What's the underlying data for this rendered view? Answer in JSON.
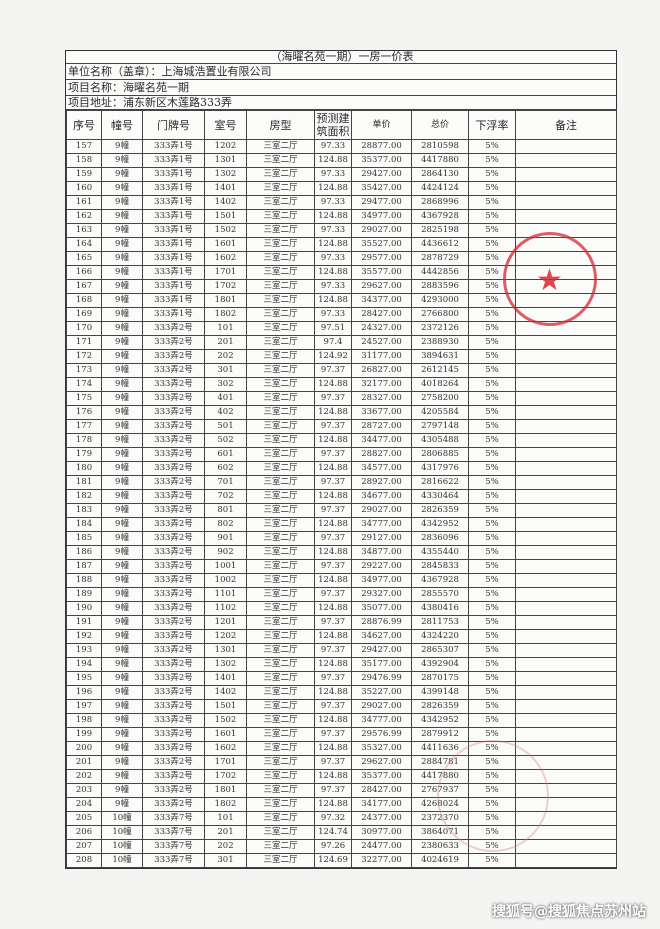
{
  "document": {
    "title": "（海曜名苑一期）一房一价表",
    "company_line": "单位名称（盖章）：上海城浩置业有限公司",
    "project_name_line": "项目名称：海曜名苑一期",
    "project_address_line": "项目地址：浦东新区木莲路333弄"
  },
  "table": {
    "headers": [
      "序号",
      "幢号",
      "门牌号",
      "室号",
      "房型",
      "预测建筑面积",
      "单价",
      "总价",
      "下浮率",
      "备注"
    ],
    "rows": [
      [
        "157",
        "9幢",
        "333弄1号",
        "1202",
        "三室二厅",
        "97.33",
        "28877.00",
        "2810598",
        "5%",
        ""
      ],
      [
        "158",
        "9幢",
        "333弄1号",
        "1301",
        "三室二厅",
        "124.88",
        "35377.00",
        "4417880",
        "5%",
        ""
      ],
      [
        "159",
        "9幢",
        "333弄1号",
        "1302",
        "三室二厅",
        "97.33",
        "29427.00",
        "2864130",
        "5%",
        ""
      ],
      [
        "160",
        "9幢",
        "333弄1号",
        "1401",
        "三室二厅",
        "124.88",
        "35427.00",
        "4424124",
        "5%",
        ""
      ],
      [
        "161",
        "9幢",
        "333弄1号",
        "1402",
        "三室二厅",
        "97.33",
        "29477.00",
        "2868996",
        "5%",
        ""
      ],
      [
        "162",
        "9幢",
        "333弄1号",
        "1501",
        "三室二厅",
        "124.88",
        "34977.00",
        "4367928",
        "5%",
        ""
      ],
      [
        "163",
        "9幢",
        "333弄1号",
        "1502",
        "三室二厅",
        "97.33",
        "29027.00",
        "2825198",
        "5%",
        ""
      ],
      [
        "164",
        "9幢",
        "333弄1号",
        "1601",
        "三室二厅",
        "124.88",
        "35527.00",
        "4436612",
        "5%",
        ""
      ],
      [
        "165",
        "9幢",
        "333弄1号",
        "1602",
        "三室二厅",
        "97.33",
        "29577.00",
        "2878729",
        "5%",
        ""
      ],
      [
        "166",
        "9幢",
        "333弄1号",
        "1701",
        "三室二厅",
        "124.88",
        "35577.00",
        "4442856",
        "5%",
        ""
      ],
      [
        "167",
        "9幢",
        "333弄1号",
        "1702",
        "三室二厅",
        "97.33",
        "29627.00",
        "2883596",
        "5%",
        ""
      ],
      [
        "168",
        "9幢",
        "333弄1号",
        "1801",
        "三室二厅",
        "124.88",
        "34377.00",
        "4293000",
        "5%",
        ""
      ],
      [
        "169",
        "9幢",
        "333弄1号",
        "1802",
        "三室二厅",
        "97.33",
        "28427.00",
        "2766800",
        "5%",
        ""
      ],
      [
        "170",
        "9幢",
        "333弄2号",
        "101",
        "三室二厅",
        "97.51",
        "24327.00",
        "2372126",
        "5%",
        ""
      ],
      [
        "171",
        "9幢",
        "333弄2号",
        "201",
        "三室二厅",
        "97.4",
        "24527.00",
        "2388930",
        "5%",
        ""
      ],
      [
        "172",
        "9幢",
        "333弄2号",
        "202",
        "三室二厅",
        "124.92",
        "31177.00",
        "3894631",
        "5%",
        ""
      ],
      [
        "173",
        "9幢",
        "333弄2号",
        "301",
        "三室二厅",
        "97.37",
        "26827.00",
        "2612145",
        "5%",
        ""
      ],
      [
        "174",
        "9幢",
        "333弄2号",
        "302",
        "三室二厅",
        "124.88",
        "32177.00",
        "4018264",
        "5%",
        ""
      ],
      [
        "175",
        "9幢",
        "333弄2号",
        "401",
        "三室二厅",
        "97.37",
        "28327.00",
        "2758200",
        "5%",
        ""
      ],
      [
        "176",
        "9幢",
        "333弄2号",
        "402",
        "三室二厅",
        "124.88",
        "33677.00",
        "4205584",
        "5%",
        ""
      ],
      [
        "177",
        "9幢",
        "333弄2号",
        "501",
        "三室二厅",
        "97.37",
        "28727.00",
        "2797148",
        "5%",
        ""
      ],
      [
        "178",
        "9幢",
        "333弄2号",
        "502",
        "三室二厅",
        "124.88",
        "34477.00",
        "4305488",
        "5%",
        ""
      ],
      [
        "179",
        "9幢",
        "333弄2号",
        "601",
        "三室二厅",
        "97.37",
        "28827.00",
        "2806885",
        "5%",
        ""
      ],
      [
        "180",
        "9幢",
        "333弄2号",
        "602",
        "三室二厅",
        "124.88",
        "34577.00",
        "4317976",
        "5%",
        ""
      ],
      [
        "181",
        "9幢",
        "333弄2号",
        "701",
        "三室二厅",
        "97.37",
        "28927.00",
        "2816622",
        "5%",
        ""
      ],
      [
        "182",
        "9幢",
        "333弄2号",
        "702",
        "三室二厅",
        "124.88",
        "34677.00",
        "4330464",
        "5%",
        ""
      ],
      [
        "183",
        "9幢",
        "333弄2号",
        "801",
        "三室二厅",
        "97.37",
        "29027.00",
        "2826359",
        "5%",
        ""
      ],
      [
        "184",
        "9幢",
        "333弄2号",
        "802",
        "三室二厅",
        "124.88",
        "34777.00",
        "4342952",
        "5%",
        ""
      ],
      [
        "185",
        "9幢",
        "333弄2号",
        "901",
        "三室二厅",
        "97.37",
        "29127.00",
        "2836096",
        "5%",
        ""
      ],
      [
        "186",
        "9幢",
        "333弄2号",
        "902",
        "三室二厅",
        "124.88",
        "34877.00",
        "4355440",
        "5%",
        ""
      ],
      [
        "187",
        "9幢",
        "333弄2号",
        "1001",
        "三室二厅",
        "97.37",
        "29227.00",
        "2845833",
        "5%",
        ""
      ],
      [
        "188",
        "9幢",
        "333弄2号",
        "1002",
        "三室二厅",
        "124.88",
        "34977.00",
        "4367928",
        "5%",
        ""
      ],
      [
        "189",
        "9幢",
        "333弄2号",
        "1101",
        "三室二厅",
        "97.37",
        "29327.00",
        "2855570",
        "5%",
        ""
      ],
      [
        "190",
        "9幢",
        "333弄2号",
        "1102",
        "三室二厅",
        "124.88",
        "35077.00",
        "4380416",
        "5%",
        ""
      ],
      [
        "191",
        "9幢",
        "333弄2号",
        "1201",
        "三室二厅",
        "97.37",
        "28876.99",
        "2811753",
        "5%",
        ""
      ],
      [
        "192",
        "9幢",
        "333弄2号",
        "1202",
        "三室二厅",
        "124.88",
        "34627.00",
        "4324220",
        "5%",
        ""
      ],
      [
        "193",
        "9幢",
        "333弄2号",
        "1301",
        "三室二厅",
        "97.37",
        "29427.00",
        "2865307",
        "5%",
        ""
      ],
      [
        "194",
        "9幢",
        "333弄2号",
        "1302",
        "三室二厅",
        "124.88",
        "35177.00",
        "4392904",
        "5%",
        ""
      ],
      [
        "195",
        "9幢",
        "333弄2号",
        "1401",
        "三室二厅",
        "97.37",
        "29476.99",
        "2870175",
        "5%",
        ""
      ],
      [
        "196",
        "9幢",
        "333弄2号",
        "1402",
        "三室二厅",
        "124.88",
        "35227.00",
        "4399148",
        "5%",
        ""
      ],
      [
        "197",
        "9幢",
        "333弄2号",
        "1501",
        "三室二厅",
        "97.37",
        "29027.00",
        "2826359",
        "5%",
        ""
      ],
      [
        "198",
        "9幢",
        "333弄2号",
        "1502",
        "三室二厅",
        "124.88",
        "34777.00",
        "4342952",
        "5%",
        ""
      ],
      [
        "199",
        "9幢",
        "333弄2号",
        "1601",
        "三室二厅",
        "97.37",
        "29576.99",
        "2879912",
        "5%",
        ""
      ],
      [
        "200",
        "9幢",
        "333弄2号",
        "1602",
        "三室二厅",
        "124.88",
        "35327.00",
        "4411636",
        "5%",
        ""
      ],
      [
        "201",
        "9幢",
        "333弄2号",
        "1701",
        "三室二厅",
        "97.37",
        "29627.00",
        "2884781",
        "5%",
        ""
      ],
      [
        "202",
        "9幢",
        "333弄2号",
        "1702",
        "三室二厅",
        "124.88",
        "35377.00",
        "4417880",
        "5%",
        ""
      ],
      [
        "203",
        "9幢",
        "333弄2号",
        "1801",
        "三室二厅",
        "97.37",
        "28427.00",
        "2767937",
        "5%",
        ""
      ],
      [
        "204",
        "9幢",
        "333弄2号",
        "1802",
        "三室二厅",
        "124.88",
        "34177.00",
        "4268024",
        "5%",
        ""
      ],
      [
        "205",
        "10幢",
        "333弄7号",
        "101",
        "三室二厅",
        "97.32",
        "24377.00",
        "2372370",
        "5%",
        ""
      ],
      [
        "206",
        "10幢",
        "333弄7号",
        "201",
        "三室二厅",
        "124.74",
        "30977.00",
        "3864071",
        "5%",
        ""
      ],
      [
        "207",
        "10幢",
        "333弄7号",
        "202",
        "三室二厅",
        "97.26",
        "24477.00",
        "2380633",
        "5%",
        ""
      ],
      [
        "208",
        "10幢",
        "333弄7号",
        "301",
        "三室二厅",
        "124.69",
        "32277.00",
        "4024619",
        "5%",
        ""
      ]
    ]
  },
  "watermark": "搜狐号@搜狐焦点苏州站",
  "stamp_color": "#d22832"
}
